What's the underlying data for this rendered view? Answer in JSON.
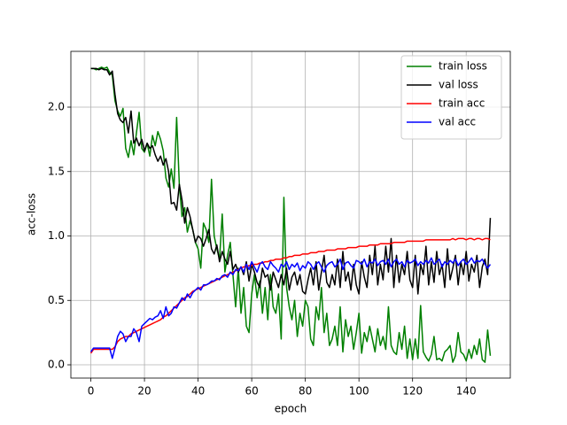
{
  "chart_data": {
    "type": "line",
    "xlabel": "epoch",
    "ylabel": "acc-loss",
    "x": [
      0,
      1,
      2,
      3,
      4,
      5,
      6,
      7,
      8,
      9,
      10,
      11,
      12,
      13,
      14,
      15,
      16,
      17,
      18,
      19,
      20,
      21,
      22,
      23,
      24,
      25,
      26,
      27,
      28,
      29,
      30,
      31,
      32,
      33,
      34,
      35,
      36,
      37,
      38,
      39,
      40,
      41,
      42,
      43,
      44,
      45,
      46,
      47,
      48,
      49,
      50,
      51,
      52,
      53,
      54,
      55,
      56,
      57,
      58,
      59,
      60,
      61,
      62,
      63,
      64,
      65,
      66,
      67,
      68,
      69,
      70,
      71,
      72,
      73,
      74,
      75,
      76,
      77,
      78,
      79,
      80,
      81,
      82,
      83,
      84,
      85,
      86,
      87,
      88,
      89,
      90,
      91,
      92,
      93,
      94,
      95,
      96,
      97,
      98,
      99,
      100,
      101,
      102,
      103,
      104,
      105,
      106,
      107,
      108,
      109,
      110,
      111,
      112,
      113,
      114,
      115,
      116,
      117,
      118,
      119,
      120,
      121,
      122,
      123,
      124,
      125,
      126,
      127,
      128,
      129,
      130,
      131,
      132,
      133,
      134,
      135,
      136,
      137,
      138,
      139,
      140,
      141,
      142,
      143,
      144,
      145,
      146,
      147,
      148,
      149
    ],
    "series": [
      {
        "name": "train loss",
        "color": "#008000",
        "values": [
          2.3,
          2.3,
          2.29,
          2.3,
          2.31,
          2.3,
          2.31,
          2.27,
          2.25,
          2.05,
          1.97,
          1.93,
          1.99,
          1.68,
          1.61,
          1.74,
          1.63,
          1.8,
          1.96,
          1.68,
          1.65,
          1.72,
          1.62,
          1.78,
          1.7,
          1.81,
          1.75,
          1.66,
          1.45,
          1.38,
          1.52,
          1.37,
          1.92,
          1.4,
          1.15,
          1.22,
          1.03,
          1.12,
          1.05,
          0.95,
          0.9,
          0.75,
          1.1,
          1.05,
          0.95,
          1.44,
          1.0,
          0.9,
          0.82,
          1.17,
          0.72,
          0.85,
          0.95,
          0.7,
          0.45,
          0.75,
          0.4,
          0.6,
          0.3,
          0.25,
          0.55,
          0.7,
          0.52,
          0.65,
          0.4,
          0.6,
          0.35,
          0.7,
          0.45,
          0.4,
          0.55,
          0.2,
          1.3,
          0.6,
          0.45,
          0.35,
          0.5,
          0.22,
          0.4,
          0.3,
          0.5,
          0.45,
          0.2,
          0.15,
          0.45,
          0.35,
          0.6,
          0.25,
          0.4,
          0.15,
          0.2,
          0.3,
          0.15,
          0.45,
          0.1,
          0.35,
          0.22,
          0.3,
          0.12,
          0.25,
          0.4,
          0.09,
          0.25,
          0.18,
          0.3,
          0.2,
          0.1,
          0.28,
          0.15,
          0.22,
          0.12,
          0.45,
          0.15,
          0.1,
          0.08,
          0.25,
          0.12,
          0.3,
          0.05,
          0.2,
          0.04,
          0.2,
          0.05,
          0.46,
          0.1,
          0.06,
          0.03,
          0.08,
          0.22,
          0.04,
          0.05,
          0.03,
          0.1,
          0.12,
          0.15,
          0.02,
          0.07,
          0.25,
          0.1,
          0.08,
          0.03,
          0.12,
          0.05,
          0.15,
          0.08,
          0.2,
          0.04,
          0.02,
          0.27,
          0.07
        ]
      },
      {
        "name": "val loss",
        "color": "#000000",
        "values": [
          2.3,
          2.3,
          2.3,
          2.29,
          2.3,
          2.29,
          2.29,
          2.25,
          2.28,
          2.1,
          1.95,
          1.9,
          1.88,
          1.92,
          1.8,
          1.97,
          1.72,
          1.76,
          1.7,
          1.75,
          1.66,
          1.72,
          1.68,
          1.7,
          1.63,
          1.58,
          1.62,
          1.55,
          1.6,
          1.5,
          1.25,
          1.26,
          1.2,
          1.4,
          1.28,
          1.1,
          1.22,
          1.15,
          1.05,
          0.95,
          1.0,
          0.98,
          0.92,
          0.98,
          1.05,
          0.9,
          0.86,
          0.93,
          0.8,
          0.88,
          0.82,
          0.78,
          0.88,
          0.74,
          0.78,
          0.72,
          0.76,
          0.7,
          0.8,
          0.65,
          0.78,
          0.72,
          0.64,
          0.6,
          0.75,
          0.68,
          0.7,
          0.58,
          0.72,
          0.66,
          0.6,
          0.7,
          0.62,
          0.75,
          0.58,
          0.68,
          0.72,
          0.62,
          0.7,
          0.57,
          0.55,
          0.66,
          0.75,
          0.62,
          0.8,
          0.58,
          0.72,
          0.85,
          0.64,
          0.6,
          0.7,
          0.62,
          0.82,
          0.6,
          0.88,
          0.65,
          0.72,
          0.58,
          0.78,
          0.62,
          0.55,
          0.8,
          0.68,
          0.6,
          0.85,
          0.7,
          0.92,
          0.62,
          0.78,
          0.66,
          0.92,
          0.72,
          0.98,
          0.6,
          0.85,
          0.64,
          0.78,
          0.7,
          0.88,
          0.66,
          0.6,
          0.85,
          0.55,
          0.78,
          0.7,
          0.92,
          0.62,
          0.8,
          0.64,
          0.88,
          0.7,
          0.78,
          0.6,
          0.9,
          0.66,
          0.75,
          0.85,
          0.62,
          0.8,
          0.7,
          0.88,
          0.65,
          0.78,
          0.72,
          0.85,
          0.6,
          0.76,
          0.82,
          0.7,
          1.14
        ]
      },
      {
        "name": "train acc",
        "color": "#ff0000",
        "values": [
          0.09,
          0.12,
          0.12,
          0.12,
          0.12,
          0.12,
          0.12,
          0.12,
          0.12,
          0.14,
          0.18,
          0.2,
          0.21,
          0.22,
          0.22,
          0.24,
          0.25,
          0.26,
          0.27,
          0.28,
          0.29,
          0.3,
          0.31,
          0.32,
          0.33,
          0.34,
          0.35,
          0.37,
          0.38,
          0.4,
          0.42,
          0.44,
          0.46,
          0.48,
          0.5,
          0.52,
          0.53,
          0.55,
          0.57,
          0.58,
          0.59,
          0.6,
          0.61,
          0.62,
          0.63,
          0.64,
          0.65,
          0.66,
          0.67,
          0.68,
          0.69,
          0.7,
          0.71,
          0.72,
          0.73,
          0.74,
          0.75,
          0.76,
          0.76,
          0.77,
          0.77,
          0.78,
          0.78,
          0.79,
          0.79,
          0.8,
          0.8,
          0.81,
          0.81,
          0.82,
          0.82,
          0.82,
          0.83,
          0.83,
          0.84,
          0.84,
          0.85,
          0.85,
          0.85,
          0.86,
          0.86,
          0.86,
          0.87,
          0.87,
          0.87,
          0.88,
          0.88,
          0.88,
          0.89,
          0.89,
          0.89,
          0.89,
          0.9,
          0.9,
          0.9,
          0.9,
          0.91,
          0.91,
          0.91,
          0.91,
          0.92,
          0.92,
          0.92,
          0.92,
          0.93,
          0.93,
          0.93,
          0.93,
          0.94,
          0.94,
          0.94,
          0.94,
          0.94,
          0.95,
          0.95,
          0.95,
          0.95,
          0.95,
          0.96,
          0.96,
          0.96,
          0.96,
          0.96,
          0.96,
          0.96,
          0.97,
          0.97,
          0.97,
          0.97,
          0.97,
          0.97,
          0.97,
          0.97,
          0.97,
          0.97,
          0.98,
          0.97,
          0.98,
          0.98,
          0.98,
          0.97,
          0.98,
          0.98,
          0.97,
          0.98,
          0.98,
          0.97,
          0.98,
          0.98,
          0.97
        ]
      },
      {
        "name": "val acc",
        "color": "#0000ff",
        "values": [
          0.1,
          0.13,
          0.13,
          0.13,
          0.13,
          0.13,
          0.13,
          0.13,
          0.05,
          0.13,
          0.22,
          0.26,
          0.24,
          0.18,
          0.22,
          0.22,
          0.28,
          0.25,
          0.18,
          0.3,
          0.32,
          0.34,
          0.36,
          0.35,
          0.37,
          0.38,
          0.42,
          0.36,
          0.45,
          0.38,
          0.4,
          0.45,
          0.44,
          0.48,
          0.52,
          0.5,
          0.55,
          0.52,
          0.56,
          0.58,
          0.6,
          0.58,
          0.62,
          0.62,
          0.63,
          0.65,
          0.65,
          0.67,
          0.66,
          0.69,
          0.7,
          0.68,
          0.72,
          0.7,
          0.74,
          0.73,
          0.76,
          0.72,
          0.78,
          0.74,
          0.8,
          0.76,
          0.72,
          0.78,
          0.8,
          0.76,
          0.74,
          0.8,
          0.77,
          0.75,
          0.72,
          0.78,
          0.76,
          0.8,
          0.74,
          0.78,
          0.76,
          0.79,
          0.73,
          0.77,
          0.75,
          0.8,
          0.78,
          0.74,
          0.78,
          0.8,
          0.76,
          0.72,
          0.77,
          0.79,
          0.8,
          0.76,
          0.78,
          0.82,
          0.74,
          0.79,
          0.8,
          0.77,
          0.75,
          0.81,
          0.8,
          0.78,
          0.82,
          0.76,
          0.8,
          0.79,
          0.82,
          0.77,
          0.8,
          0.81,
          0.78,
          0.82,
          0.76,
          0.8,
          0.82,
          0.78,
          0.8,
          0.76,
          0.81,
          0.79,
          0.8,
          0.82,
          0.77,
          0.8,
          0.78,
          0.81,
          0.79,
          0.83,
          0.78,
          0.8,
          0.82,
          0.76,
          0.8,
          0.78,
          0.81,
          0.79,
          0.82,
          0.77,
          0.8,
          0.82,
          0.78,
          0.8,
          0.83,
          0.79,
          0.81,
          0.8,
          0.82,
          0.78,
          0.75,
          0.78
        ]
      }
    ],
    "xlim": [
      -7.45,
      156.45
    ],
    "xticks": [
      0,
      20,
      40,
      60,
      80,
      100,
      120,
      140
    ],
    "ylim": [
      -0.103,
      2.433
    ],
    "yticks": [
      {
        "value": 0,
        "label": "0.0"
      },
      0.5,
      {
        "value": 1,
        "label": "1.0"
      },
      1.5,
      {
        "value": 2,
        "label": "2.0"
      }
    ],
    "grid": true,
    "legend": "upper right"
  }
}
